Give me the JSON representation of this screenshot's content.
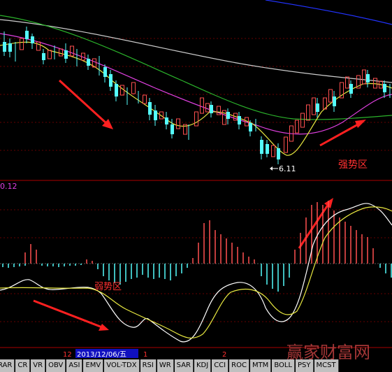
{
  "chart": {
    "low_price": "6.11",
    "upper_zone": "强势区",
    "indicator_value": "0.12",
    "lower_zone": "弱势区"
  },
  "timeline": {
    "labels": [
      "12",
      "1",
      "2"
    ],
    "cursor_date": "2013/12/06/五"
  },
  "tabs": [
    "RAR",
    "CR",
    "VR",
    "OBV",
    "ASI",
    "EMV",
    "VOL-TDX",
    "RSI",
    "WR",
    "SAR",
    "KDJ",
    "CCI",
    "ROC",
    "MTM",
    "BOLL",
    "PSY",
    "MCST"
  ],
  "watermark": "赢家财富网"
}
